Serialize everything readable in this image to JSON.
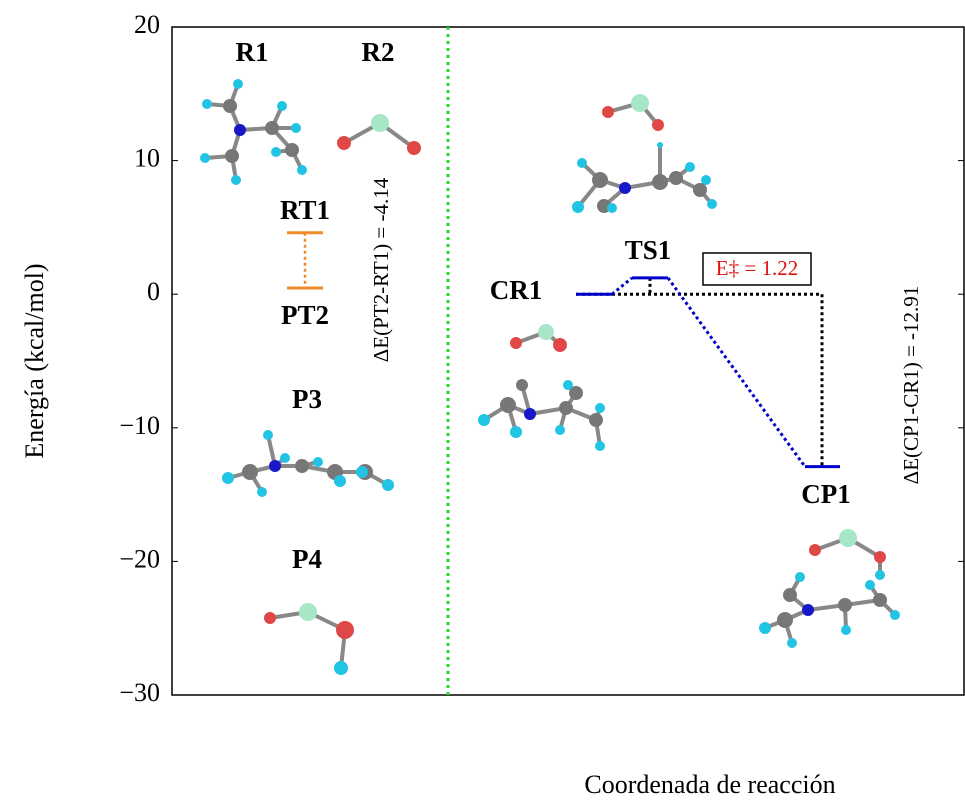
{
  "chart_data": {
    "type": "energy",
    "ylabel": "Energía (kcal/mol)",
    "xlabel": "Coordenada de reacción",
    "ylim": [
      -30,
      20
    ],
    "yticks": [
      {
        "value": -30,
        "label": "−30"
      },
      {
        "value": -20,
        "label": "−20"
      },
      {
        "value": -10,
        "label": "−10"
      },
      0,
      10,
      20
    ],
    "structure_labels": [
      "R1",
      "R2",
      "P3",
      "P4"
    ],
    "isolated": {
      "categories": [
        "RT1",
        "PT2"
      ],
      "values": [
        4.6,
        0.46
      ],
      "color": "#f08c28"
    },
    "pathway": {
      "categories": [
        "CR1",
        "TS1",
        "CP1"
      ],
      "values": [
        0,
        1.22,
        -12.91
      ],
      "color": "#0000cc"
    },
    "annotations": [
      "ΔE(PT2-RT1) = -4.14",
      "ΔE(CP1-CR1) = -12.91",
      "E‡ = 1.22"
    ]
  }
}
